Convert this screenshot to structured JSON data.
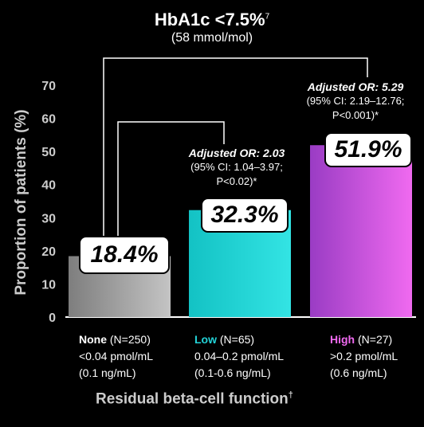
{
  "title": "HbA1c <7.5%",
  "title_sup": "7",
  "subtitle": "(58 mmol/mol)",
  "chart_data": {
    "type": "bar",
    "title": "HbA1c <7.5%",
    "subtitle": "(58 mmol/mol)",
    "ylabel": "Proportion of patients (%)",
    "xlabel": "Residual beta-cell function",
    "xlabel_sup": "†",
    "ylim": [
      0,
      70
    ],
    "yticks": [
      "0",
      "10",
      "20",
      "30",
      "40",
      "50",
      "60",
      "70"
    ],
    "grid": false,
    "categories": [
      "None",
      "Low",
      "High"
    ],
    "values": [
      18.4,
      32.3,
      51.9
    ],
    "value_labels": [
      "18.4%",
      "32.3%",
      "51.9%"
    ],
    "category_details": [
      {
        "name": "None",
        "n": "(N=250)",
        "line2": "<0.04 pmol/mL",
        "line3": "(0.1 ng/mL)"
      },
      {
        "name": "Low",
        "n": "(N=65)",
        "line2": "0.04–0.2 pmol/mL",
        "line3": "(0.1-0.6 ng/mL)"
      },
      {
        "name": "High",
        "n": "(N=27)",
        "line2": ">0.2 pmol/mL",
        "line3": "(0.6 ng/mL)"
      }
    ],
    "colors": {
      "None": [
        "#7e7e7e",
        "#c4c4c4"
      ],
      "Low": [
        "#13c2c4",
        "#33e4e4"
      ],
      "High": [
        "#9a3cc4",
        "#f06af0"
      ],
      "none_label": "#ffffff",
      "low_label": "#23d3d8",
      "high_label": "#f06af0"
    },
    "annotations": [
      {
        "title": "Adjusted OR: 2.03",
        "line1": "(95% CI: 1.04–3.97;",
        "line2": "P<0.02)*"
      },
      {
        "title": "Adjusted OR: 5.29",
        "line1": "(95% CI: 2.19–12.76;",
        "line2": "P<0.001)*"
      }
    ]
  }
}
